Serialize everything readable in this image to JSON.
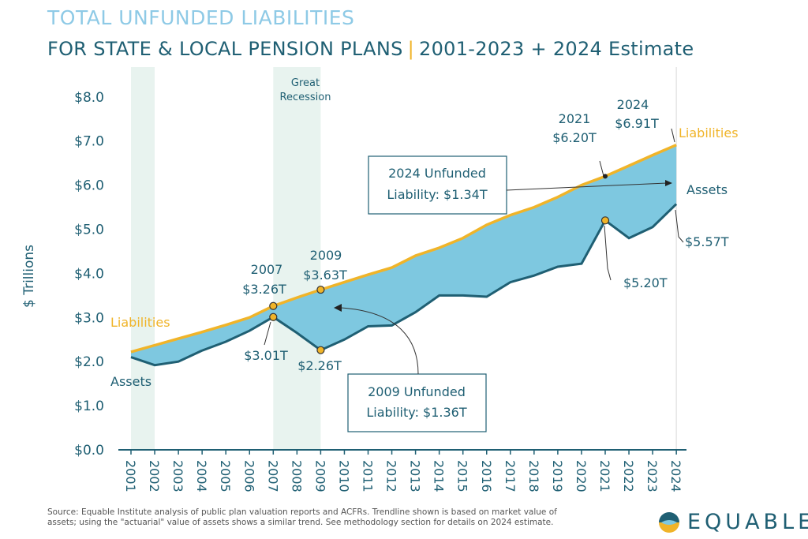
{
  "header": {
    "title_line1": "TOTAL UNFUNDED LIABILITIES",
    "title_line2_main": "FOR STATE & LOCAL PENSION PLANS",
    "title_line2_sep": "|",
    "title_line2_range": "2001-2023 + 2024 Estimate"
  },
  "colors": {
    "liabilities": "#f0b429",
    "assets": "#1f5f73",
    "gap_fill": "#7ec8e0",
    "recession_shade": "#e8f3ef",
    "title_light": "#8ecae6",
    "title_dark": "#1f5f73"
  },
  "chart_data": {
    "type": "area",
    "ylabel": "$ Trillions",
    "ylim": [
      0,
      8.5
    ],
    "yticks": [
      "$0.0",
      "$1.0",
      "$2.0",
      "$3.0",
      "$4.0",
      "$5.0",
      "$6.0",
      "$7.0",
      "$8.0"
    ],
    "x": [
      "2001",
      "2002",
      "2003",
      "2004",
      "2005",
      "2006",
      "2007",
      "2008",
      "2009",
      "2010",
      "2011",
      "2012",
      "2013",
      "2014",
      "2015",
      "2016",
      "2017",
      "2018",
      "2019",
      "2020",
      "2021",
      "2022",
      "2023",
      "2024"
    ],
    "series": [
      {
        "name": "Liabilities",
        "values": [
          2.22,
          2.37,
          2.52,
          2.67,
          2.83,
          3.0,
          3.26,
          3.45,
          3.63,
          3.8,
          3.97,
          4.13,
          4.4,
          4.58,
          4.8,
          5.1,
          5.32,
          5.5,
          5.73,
          6.0,
          6.2,
          6.44,
          6.68,
          6.91
        ]
      },
      {
        "name": "Assets",
        "values": [
          2.1,
          1.92,
          2.0,
          2.25,
          2.45,
          2.7,
          3.01,
          2.65,
          2.26,
          2.5,
          2.8,
          2.82,
          3.12,
          3.5,
          3.5,
          3.47,
          3.8,
          3.95,
          4.15,
          4.22,
          5.2,
          4.8,
          5.05,
          5.57
        ]
      }
    ],
    "shaded_periods": [
      {
        "start": "2001",
        "end": "2002",
        "label": ""
      },
      {
        "start": "2007",
        "end": "2009",
        "label": "Great Recession"
      }
    ],
    "series_labels": {
      "liabilities_left": "Liabilities",
      "assets_left": "Assets",
      "liabilities_right": "Liabilities",
      "assets_right": "Assets"
    },
    "annotations": {
      "a2007": {
        "year": "2007",
        "value": "$3.26T"
      },
      "a2009": {
        "year": "2009",
        "value": "$3.63T"
      },
      "a2021": {
        "year": "2021",
        "value": "$6.20T"
      },
      "a2024": {
        "year": "2024",
        "value": "$6.91T"
      },
      "asset_2007": "$3.01T",
      "asset_2009": "$2.26T",
      "asset_2021": "$5.20T",
      "asset_2024": "$5.57T"
    },
    "callouts": {
      "unfunded_2024": {
        "line1": "2024 Unfunded",
        "line2": "Liability: $1.34T"
      },
      "unfunded_2009": {
        "line1": "2009 Unfunded",
        "line2": "Liability: $1.36T"
      }
    }
  },
  "footer": {
    "source_line1": "Source: Equable Institute analysis of public plan valuation reports and ACFRs. Trendline shown is based on market value of",
    "source_line2": "assets; using the \"actuarial\" value of assets shows a similar trend. See methodology section for details on 2024 estimate.",
    "logo_text": "EQUABLE"
  }
}
